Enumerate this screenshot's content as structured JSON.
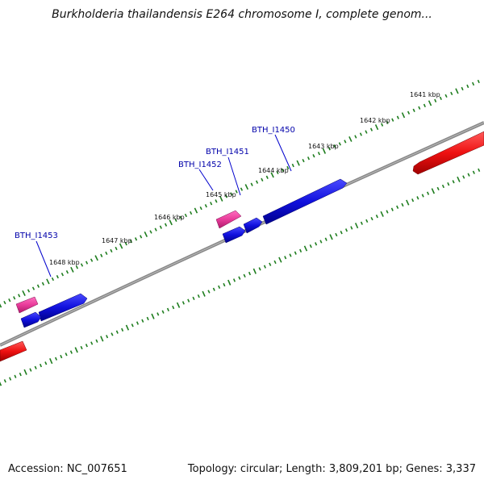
{
  "title": "Burkholderia thailandensis E264 chromosome I, complete genom...",
  "footer": {
    "accession": "Accession: NC_007651",
    "summary": "Topology: circular; Length: 3,809,201 bp; Genes: 3,337"
  },
  "colors": {
    "backbone": "#888888",
    "tick": "#1e7d1e",
    "gene_blue": "#1010dd",
    "gene_pink": "#e83c9a",
    "gene_red": "#ee1111",
    "label": "#0000aa"
  },
  "scale_labels": [
    "1641 kbp",
    "1642 kbp",
    "1643 kbp",
    "1644 kbp",
    "1645 kbp",
    "1646 kbp",
    "1647 kbp",
    "1648 kbp"
  ],
  "gene_labels": [
    "BTH_I1450",
    "BTH_I1451",
    "BTH_I1452",
    "BTH_I1453"
  ]
}
